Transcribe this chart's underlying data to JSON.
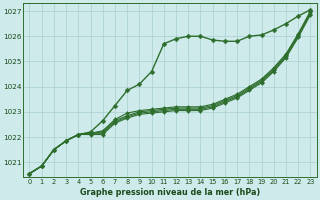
{
  "title": "Graphe pression niveau de la mer (hPa)",
  "bg_color": "#ceeaea",
  "grid_color": "#a8cece",
  "line_color": "#2d6e2d",
  "text_color": "#1a4a1a",
  "xlim": [
    -0.5,
    23.5
  ],
  "ylim": [
    1020.4,
    1027.3
  ],
  "yticks": [
    1021,
    1022,
    1023,
    1024,
    1025,
    1026,
    1027
  ],
  "xticks": [
    0,
    1,
    2,
    3,
    4,
    5,
    6,
    7,
    8,
    9,
    10,
    11,
    12,
    13,
    14,
    15,
    16,
    17,
    18,
    19,
    20,
    21,
    22,
    23
  ],
  "series": [
    {
      "y": [
        1020.55,
        1020.85,
        1021.5,
        1021.85,
        1022.1,
        1022.2,
        1022.65,
        1023.25,
        1023.85,
        1024.1,
        1024.6,
        1025.7,
        1025.9,
        1026.0,
        1026.0,
        1025.85,
        1025.8,
        1025.8,
        1026.0,
        1026.05,
        1026.25,
        1026.5,
        1026.8,
        1027.05
      ],
      "lw": 1.0,
      "marker": "D",
      "ms": 2.5
    },
    {
      "y": [
        1020.55,
        1020.85,
        1021.5,
        1021.85,
        1022.1,
        1022.15,
        1022.25,
        1022.7,
        1022.95,
        1023.05,
        1023.1,
        1023.15,
        1023.2,
        1023.2,
        1023.2,
        1023.3,
        1023.5,
        1023.7,
        1024.0,
        1024.3,
        1024.75,
        1025.3,
        1026.1,
        1027.0
      ],
      "lw": 0.8,
      "marker": "D",
      "ms": 2.0
    },
    {
      "y": [
        1020.55,
        1020.85,
        1021.5,
        1021.85,
        1022.1,
        1022.15,
        1022.2,
        1022.65,
        1022.85,
        1023.0,
        1023.05,
        1023.1,
        1023.15,
        1023.15,
        1023.15,
        1023.25,
        1023.45,
        1023.65,
        1023.95,
        1024.25,
        1024.7,
        1025.25,
        1026.05,
        1026.95
      ],
      "lw": 0.8,
      "marker": "D",
      "ms": 2.0
    },
    {
      "y": [
        1020.55,
        1020.85,
        1021.5,
        1021.85,
        1022.1,
        1022.15,
        1022.15,
        1022.6,
        1022.8,
        1022.95,
        1023.0,
        1023.05,
        1023.1,
        1023.1,
        1023.1,
        1023.2,
        1023.4,
        1023.6,
        1023.9,
        1024.2,
        1024.65,
        1025.2,
        1026.0,
        1026.9
      ],
      "lw": 0.8,
      "marker": "D",
      "ms": 2.0
    },
    {
      "y": [
        1020.55,
        1020.85,
        1021.5,
        1021.85,
        1022.1,
        1022.1,
        1022.1,
        1022.55,
        1022.75,
        1022.9,
        1022.95,
        1023.0,
        1023.05,
        1023.05,
        1023.05,
        1023.15,
        1023.35,
        1023.55,
        1023.85,
        1024.15,
        1024.6,
        1025.15,
        1025.95,
        1026.85
      ],
      "lw": 0.8,
      "marker": "D",
      "ms": 2.0
    }
  ]
}
